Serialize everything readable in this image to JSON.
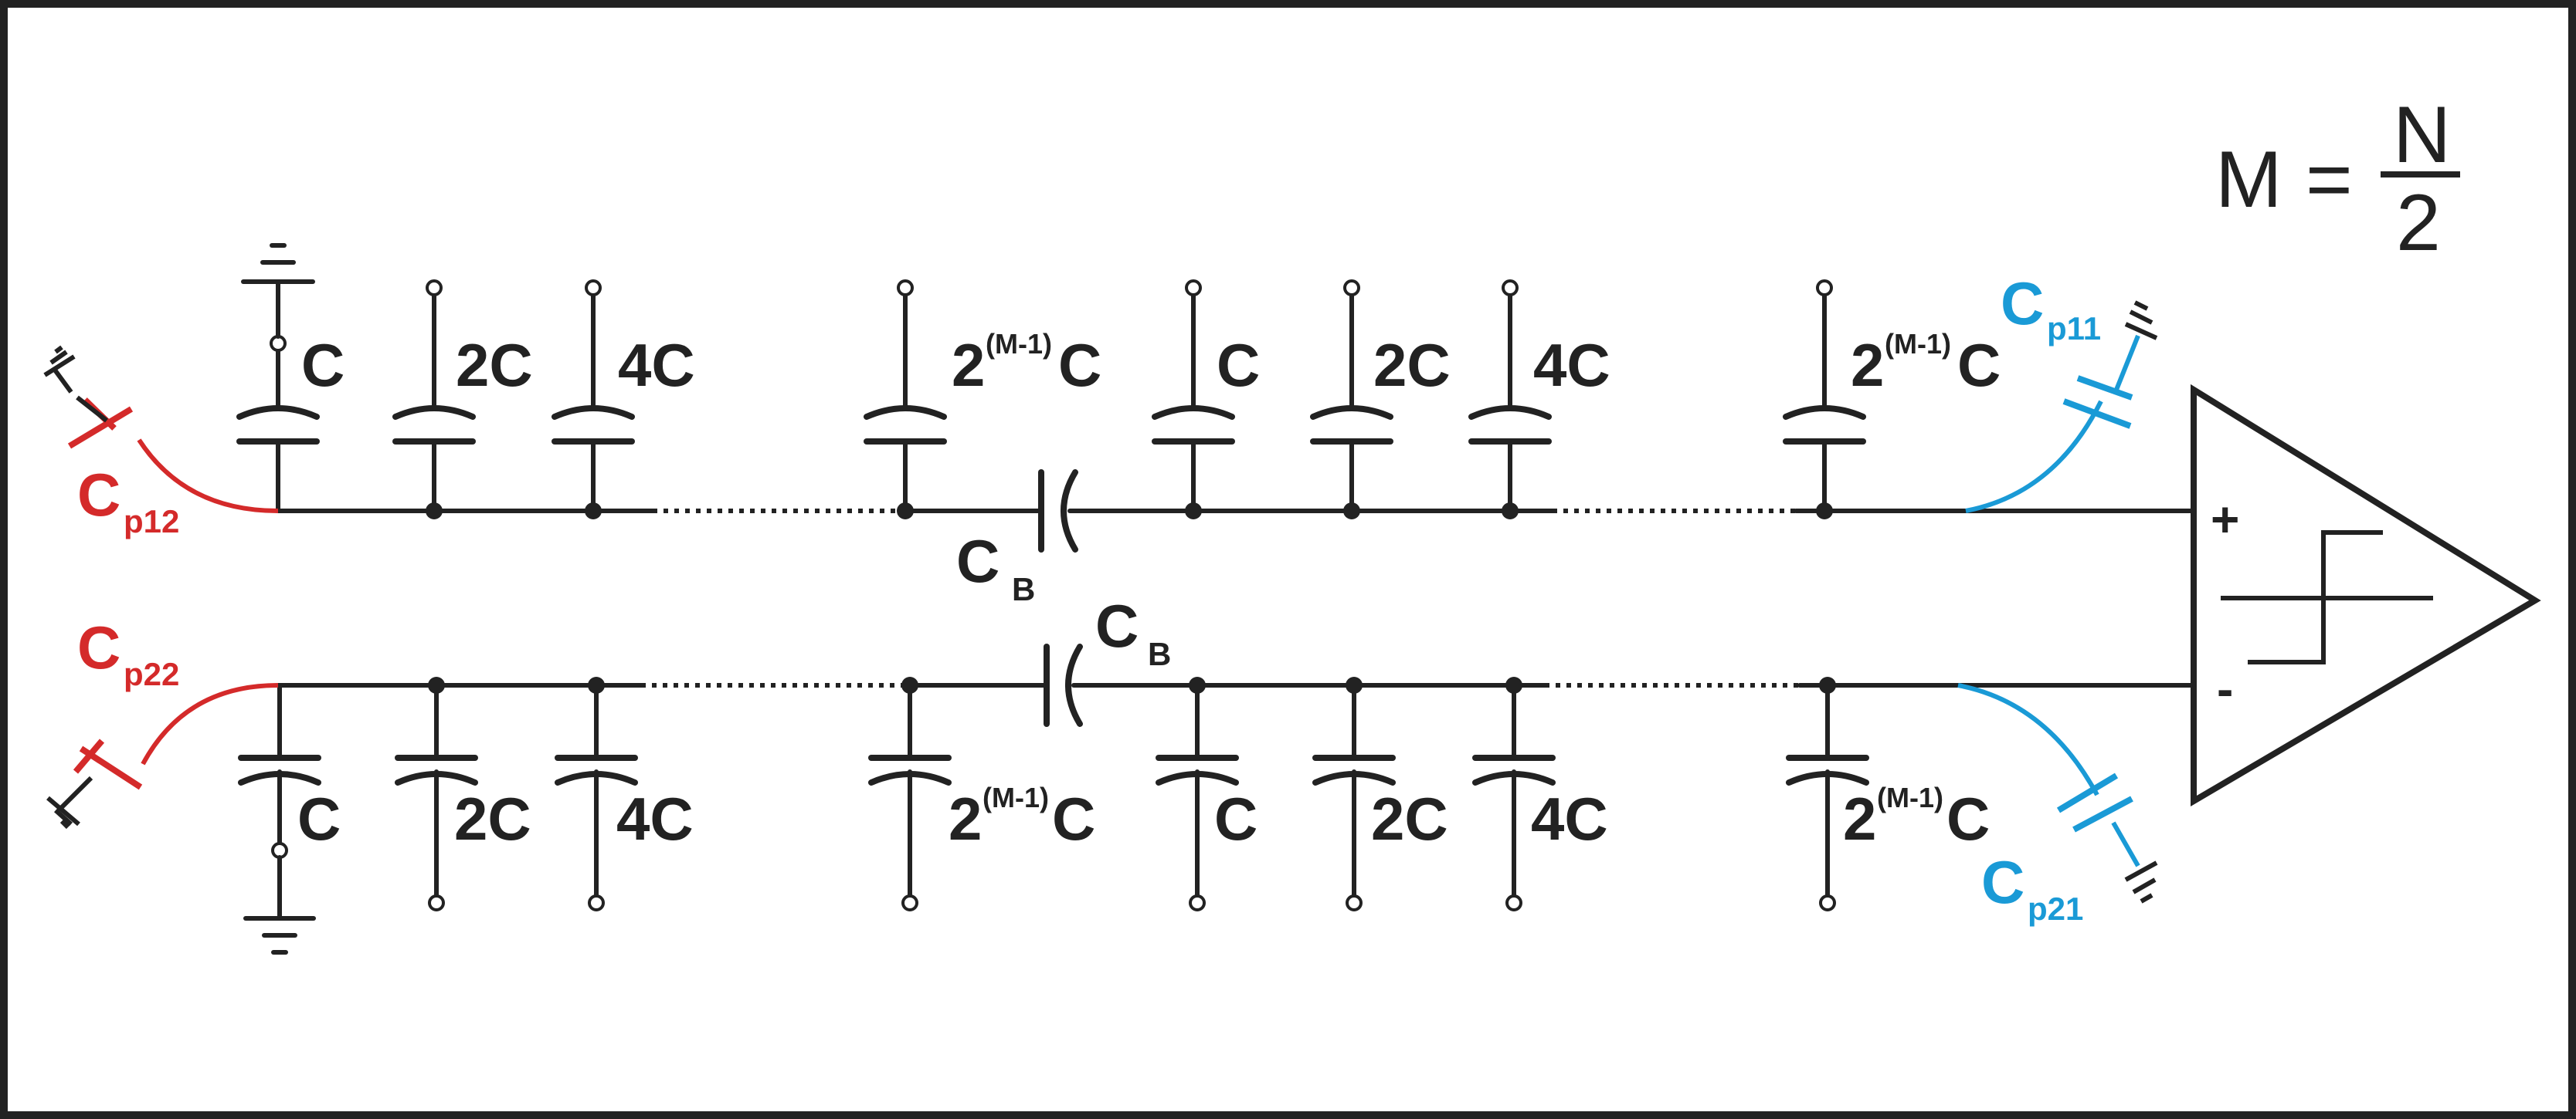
{
  "formula": {
    "lhs": "M",
    "eq": "=",
    "num": "N",
    "den": "2"
  },
  "labels": {
    "c": "C",
    "c2": "2C",
    "c4": "4C",
    "pow_base": "2",
    "pow_exp": "(M-1)",
    "pow_unit": "C",
    "cb_main": "C",
    "cb_sub": "B",
    "plus": "+",
    "minus": "-"
  },
  "parasitics": {
    "cp12": {
      "main": "C",
      "sub": "p12",
      "color": "#d42a2a"
    },
    "cp22": {
      "main": "C",
      "sub": "p22",
      "color": "#d42a2a"
    },
    "cp11": {
      "main": "C",
      "sub": "p11",
      "color": "#1a9ad6"
    },
    "cp21": {
      "main": "C",
      "sub": "p21",
      "color": "#1a9ad6"
    }
  },
  "colors": {
    "line": "#222222",
    "red": "#d42a2a",
    "blue": "#1a9ad6"
  }
}
